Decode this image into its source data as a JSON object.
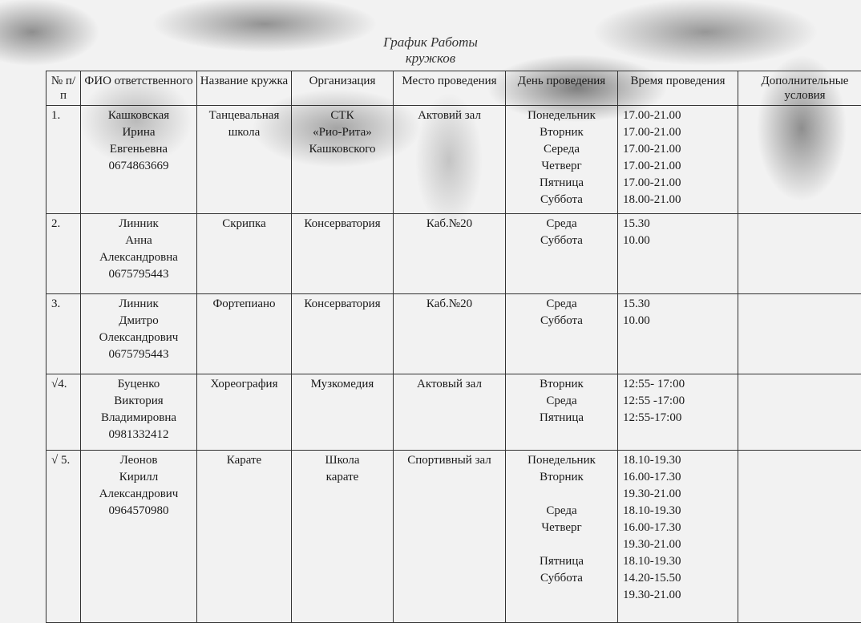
{
  "title": {
    "line1": "График Работы",
    "line2": "кружков"
  },
  "columns": [
    "№ п/п",
    "ФИО ответственного",
    "Название кружка",
    "Организация",
    "Место проведения",
    "День проведения",
    "Время проведения",
    "Дополнительные условия"
  ],
  "rows": [
    {
      "num": "1.",
      "person": [
        "Кашковская",
        "Ирина",
        "Евгеньевна",
        "0674863669"
      ],
      "club": [
        "Танцевальная",
        "школа"
      ],
      "org": [
        "СТК",
        "«Рио-Рита»",
        "Кашковского"
      ],
      "place": [
        "Актовий зал"
      ],
      "days": [
        "Понедельник",
        "Вторник",
        "Середа",
        "Четверг",
        "Пятница",
        "Суббота"
      ],
      "times": [
        "17.00-21.00",
        "17.00-21.00",
        "17.00-21.00",
        "17.00-21.00",
        "17.00-21.00",
        "18.00-21.00"
      ],
      "extra": ""
    },
    {
      "num": "2.",
      "person": [
        "Линник",
        "Анна",
        "Александровна",
        "0675795443"
      ],
      "club": [
        "Скрипка"
      ],
      "org": [
        "Консерватория"
      ],
      "place": [
        "Каб.№20"
      ],
      "days": [
        "Среда",
        "Суббота"
      ],
      "times": [
        "15.30",
        "10.00"
      ],
      "extra": ""
    },
    {
      "num": "3.",
      "person": [
        "Линник",
        "Дмитро",
        "Олександрович",
        "0675795443"
      ],
      "club": [
        "Фортепиано"
      ],
      "org": [
        "Консерватория"
      ],
      "place": [
        "Каб.№20"
      ],
      "days": [
        "Среда",
        "Суббота"
      ],
      "times": [
        "15.30",
        "10.00"
      ],
      "extra": ""
    },
    {
      "num": "√4.",
      "person": [
        "Буценко",
        "Виктория",
        "Владимировна",
        "0981332412"
      ],
      "club": [
        "Хореография"
      ],
      "org": [
        "Музкомедия"
      ],
      "place": [
        "Актовый зал"
      ],
      "days": [
        "Вторник",
        "Среда",
        "Пятница"
      ],
      "times": [
        "12:55- 17:00",
        "12:55 -17:00",
        "12:55-17:00"
      ],
      "extra": ""
    },
    {
      "num": "√ 5.",
      "person": [
        "Леонов",
        "Кирилл",
        "Александрович",
        "0964570980"
      ],
      "club": [
        "Карате"
      ],
      "org": [
        "Школа",
        "карате"
      ],
      "place": [
        "Спортивный зал"
      ],
      "days": [
        "Понедельник",
        "Вторник",
        "",
        "Среда",
        "Четверг",
        "",
        "Пятница",
        "Суббота",
        ""
      ],
      "times": [
        "18.10-19.30",
        "16.00-17.30",
        "19.30-21.00",
        "18.10-19.30",
        "16.00-17.30",
        "19.30-21.00",
        "18.10-19.30",
        "14.20-15.50",
        "19.30-21.00"
      ],
      "extra": ""
    }
  ]
}
